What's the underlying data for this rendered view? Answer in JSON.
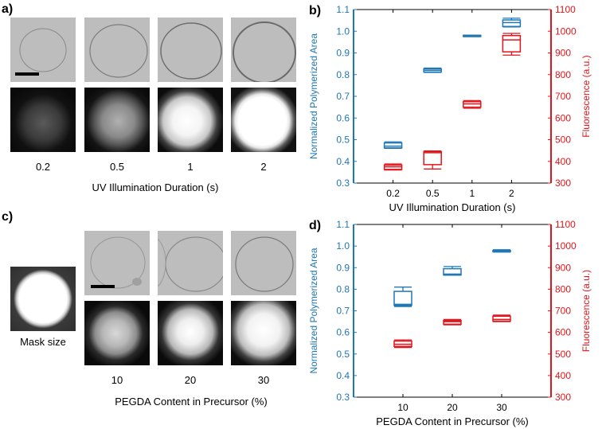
{
  "panels": {
    "a": {
      "letter": "a)",
      "tick_labels": [
        "0.2",
        "0.5",
        "1",
        "2"
      ],
      "xlabel": "UV Illumination Duration (s)"
    },
    "c": {
      "letter": "c)",
      "mask_label": "Mask size",
      "tick_labels": [
        "10",
        "20",
        "30"
      ],
      "xlabel": "PEGDA Content in Precursor (%)"
    }
  },
  "colors": {
    "left_axis": "#1f77b4",
    "right_axis": "#e3151a"
  },
  "chart_data": [
    {
      "panel": "b)",
      "type": "box",
      "categories": [
        "0.2",
        "0.5",
        "1",
        "2"
      ],
      "xlabel": "UV Illumination Duration (s)",
      "ylabel": "Normalized Polymerized Area",
      "y2label": "Fluorescence (a.u.)",
      "ylim": [
        0.3,
        1.1
      ],
      "y2lim": [
        300,
        1100
      ],
      "yticks": [
        "0.3",
        "0.4",
        "0.5",
        "0.6",
        "0.7",
        "0.8",
        "0.9",
        "1.0",
        "1.1"
      ],
      "y2ticks": [
        "300",
        "400",
        "500",
        "600",
        "700",
        "800",
        "900",
        "1000",
        "1100"
      ],
      "series": [
        {
          "axis": "left",
          "color": "#1f77b4",
          "boxes": [
            {
              "min": 0.46,
              "q1": 0.462,
              "median": 0.47,
              "q3": 0.485,
              "max": 0.49
            },
            {
              "min": 0.81,
              "q1": 0.812,
              "median": 0.82,
              "q3": 0.827,
              "max": 0.83
            },
            {
              "min": 0.975,
              "q1": 0.976,
              "median": 0.978,
              "q3": 0.981,
              "max": 0.982
            },
            {
              "min": 1.02,
              "q1": 1.022,
              "median": 1.04,
              "q3": 1.052,
              "max": 1.06
            }
          ]
        },
        {
          "axis": "right",
          "color": "#e3151a",
          "boxes": [
            {
              "min": 360,
              "q1": 363,
              "median": 375,
              "q3": 383,
              "max": 388
            },
            {
              "min": 365,
              "q1": 385,
              "median": 440,
              "q3": 445,
              "max": 448
            },
            {
              "min": 645,
              "q1": 650,
              "median": 665,
              "q3": 675,
              "max": 680
            },
            {
              "min": 890,
              "q1": 905,
              "median": 960,
              "q3": 980,
              "max": 990
            }
          ]
        }
      ]
    },
    {
      "panel": "d)",
      "type": "box",
      "categories": [
        "10",
        "20",
        "30"
      ],
      "xlabel": "PEGDA Content in Precursor (%)",
      "ylabel": "Normalized Polymerized Area",
      "y2label": "Fluorescence (a.u.)",
      "ylim": [
        0.3,
        1.1
      ],
      "y2lim": [
        300,
        1100
      ],
      "yticks": [
        "0.3",
        "0.4",
        "0.5",
        "0.6",
        "0.7",
        "0.8",
        "0.9",
        "1.0",
        "1.1"
      ],
      "y2ticks": [
        "300",
        "400",
        "500",
        "600",
        "700",
        "800",
        "900",
        "1000",
        "1100"
      ],
      "series": [
        {
          "axis": "left",
          "color": "#1f77b4",
          "boxes": [
            {
              "min": 0.72,
              "q1": 0.725,
              "median": 0.73,
              "q3": 0.79,
              "max": 0.81
            },
            {
              "min": 0.865,
              "q1": 0.866,
              "median": 0.87,
              "q3": 0.895,
              "max": 0.905
            },
            {
              "min": 0.972,
              "q1": 0.974,
              "median": 0.978,
              "q3": 0.98,
              "max": 0.983
            }
          ]
        },
        {
          "axis": "right",
          "color": "#e3151a",
          "boxes": [
            {
              "min": 530,
              "q1": 535,
              "median": 545,
              "q3": 560,
              "max": 565
            },
            {
              "min": 635,
              "q1": 638,
              "median": 650,
              "q3": 655,
              "max": 660
            },
            {
              "min": 650,
              "q1": 652,
              "median": 660,
              "q3": 675,
              "max": 680
            }
          ]
        }
      ]
    }
  ]
}
